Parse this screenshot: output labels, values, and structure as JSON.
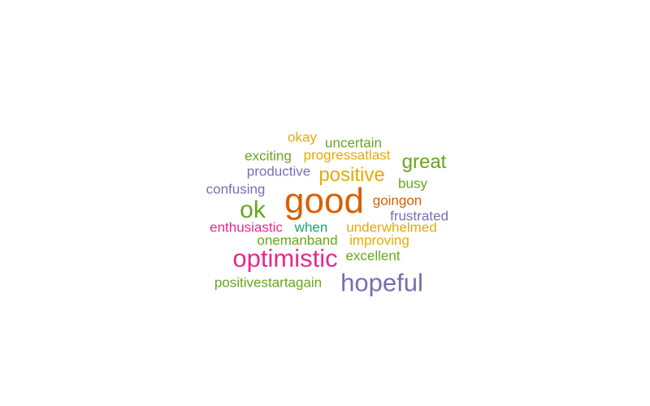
{
  "words": [
    {
      "text": "okay",
      "color": "#e6ab02",
      "weight": 1
    },
    {
      "text": "uncertain",
      "color": "#66a61e",
      "weight": 1
    },
    {
      "text": "exciting",
      "color": "#66a61e",
      "weight": 1
    },
    {
      "text": "progressatlast",
      "color": "#e6ab02",
      "weight": 1
    },
    {
      "text": "great",
      "color": "#66a61e",
      "weight": 2
    },
    {
      "text": "productive",
      "color": "#7570b3",
      "weight": 1
    },
    {
      "text": "positive",
      "color": "#e6ab02",
      "weight": 2
    },
    {
      "text": "busy",
      "color": "#66a61e",
      "weight": 1
    },
    {
      "text": "confusing",
      "color": "#7570b3",
      "weight": 1
    },
    {
      "text": "good",
      "color": "#d95f02",
      "weight": 5
    },
    {
      "text": "goingon",
      "color": "#d95f02",
      "weight": 1
    },
    {
      "text": "ok",
      "color": "#66a61e",
      "weight": 3
    },
    {
      "text": "frustrated",
      "color": "#7570b3",
      "weight": 1
    },
    {
      "text": "enthusiastic",
      "color": "#e7298a",
      "weight": 1
    },
    {
      "text": "when",
      "color": "#1b9e77",
      "weight": 1
    },
    {
      "text": "underwhelmed",
      "color": "#e6ab02",
      "weight": 1
    },
    {
      "text": "onemanband",
      "color": "#66a61e",
      "weight": 1
    },
    {
      "text": "improving",
      "color": "#e6ab02",
      "weight": 1
    },
    {
      "text": "optimistic",
      "color": "#e7298a",
      "weight": 3
    },
    {
      "text": "excellent",
      "color": "#66a61e",
      "weight": 1
    },
    {
      "text": "positivestartagain",
      "color": "#66a61e",
      "weight": 1
    },
    {
      "text": "hopeful",
      "color": "#7570b3",
      "weight": 3
    }
  ]
}
